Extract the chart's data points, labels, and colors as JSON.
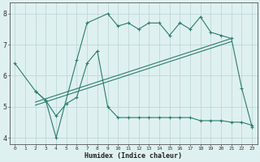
{
  "line1_x": [
    0,
    2,
    3,
    4,
    6,
    7,
    9,
    10,
    11,
    12,
    13,
    14,
    15,
    16,
    17,
    18,
    19,
    20,
    21,
    22,
    23
  ],
  "line1_y": [
    6.4,
    5.5,
    5.2,
    4.0,
    6.5,
    7.7,
    8.0,
    7.6,
    7.7,
    7.5,
    7.7,
    7.7,
    7.3,
    7.7,
    7.5,
    7.9,
    7.4,
    7.3,
    7.2,
    5.6,
    4.35
  ],
  "line2_x": [
    2,
    3,
    4,
    5,
    6,
    7,
    8,
    9,
    10,
    11,
    12,
    13,
    14,
    15,
    16,
    17,
    18,
    19,
    20,
    21,
    22,
    23
  ],
  "line2_y": [
    5.5,
    5.2,
    4.7,
    5.1,
    5.3,
    6.4,
    6.8,
    5.0,
    4.65,
    4.65,
    4.65,
    4.65,
    4.65,
    4.65,
    4.65,
    4.65,
    4.55,
    4.55,
    4.55,
    4.5,
    4.5,
    4.4
  ],
  "line3_x": [
    2,
    21
  ],
  "line3_y": [
    5.15,
    7.2
  ],
  "line4_x": [
    2,
    21
  ],
  "line4_y": [
    5.05,
    7.1
  ],
  "color": "#2a7d6e",
  "bg_color": "#dff0f0",
  "grid_color": "#b8d4d4",
  "xlabel": "Humidex (Indice chaleur)",
  "xlim": [
    -0.5,
    23.5
  ],
  "ylim": [
    3.8,
    8.35
  ],
  "yticks": [
    4,
    5,
    6,
    7,
    8
  ],
  "xticks": [
    0,
    1,
    2,
    3,
    4,
    5,
    6,
    7,
    8,
    9,
    10,
    11,
    12,
    13,
    14,
    15,
    16,
    17,
    18,
    19,
    20,
    21,
    22,
    23
  ]
}
